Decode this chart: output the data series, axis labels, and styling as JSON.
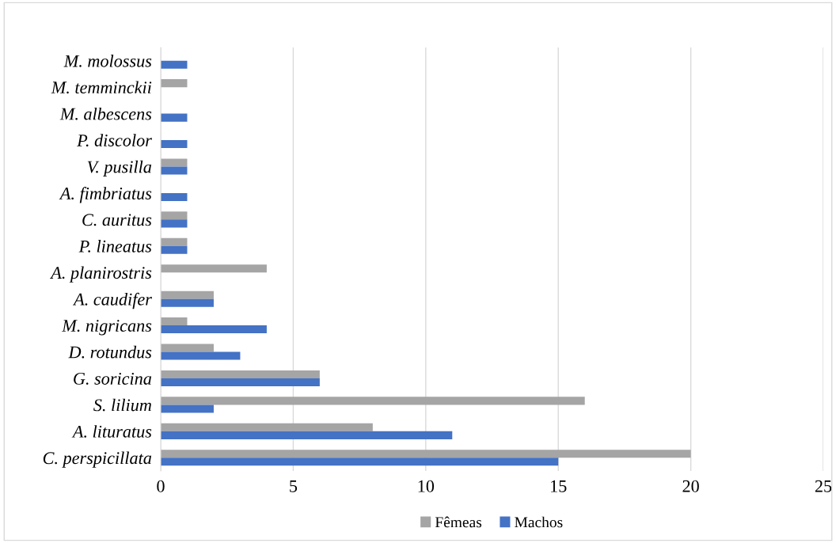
{
  "chart_data": {
    "type": "bar",
    "orientation": "horizontal",
    "categories": [
      "M. molossus",
      "M. temminckii",
      "M. albescens",
      "P. discolor",
      "V. pusilla",
      "A. fimbriatus",
      "C. auritus",
      "P. lineatus",
      "A. planirostris",
      "A. caudifer",
      "M. nigricans",
      "D. rotundus",
      "G. soricina",
      "S. lilium",
      "A. lituratus",
      "C. perspicillata"
    ],
    "series": [
      {
        "name": "Fêmeas",
        "color": "#a5a5a5",
        "values": [
          null,
          1,
          null,
          null,
          1,
          null,
          1,
          1,
          4,
          2,
          1,
          2,
          6,
          16,
          8,
          20
        ]
      },
      {
        "name": "Machos",
        "color": "#4472c4",
        "values": [
          1,
          null,
          1,
          1,
          1,
          1,
          1,
          1,
          null,
          2,
          4,
          3,
          6,
          2,
          11,
          15
        ]
      }
    ],
    "xlim": [
      0,
      25
    ],
    "xticks": [
      0,
      5,
      10,
      15,
      20,
      25
    ],
    "grid": "x",
    "legend": "bottom"
  }
}
